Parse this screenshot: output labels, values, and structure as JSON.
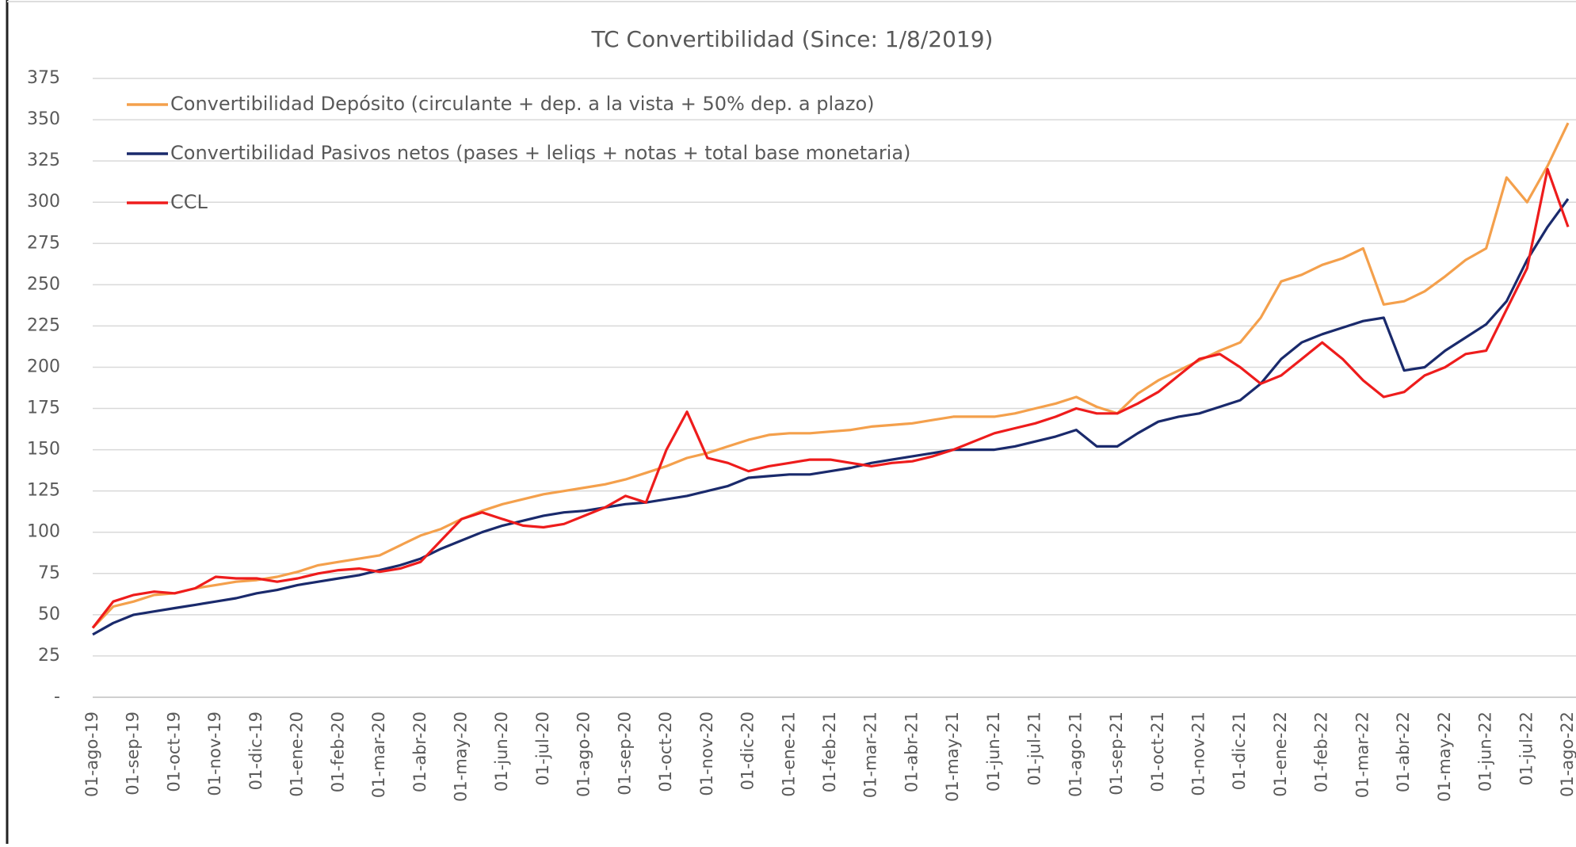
{
  "chart_data": {
    "type": "line",
    "title": "TC Convertibilidad (Since: 1/8/2019)",
    "categories": [
      "01-ago-19",
      null,
      "01-sep-19",
      null,
      "01-oct-19",
      null,
      "01-nov-19",
      null,
      "01-dic-19",
      null,
      "01-ene-20",
      null,
      "01-feb-20",
      null,
      "01-mar-20",
      null,
      "01-abr-20",
      null,
      "01-may-20",
      null,
      "01-jun-20",
      null,
      "01-jul-20",
      null,
      "01-ago-20",
      null,
      "01-sep-20",
      null,
      "01-oct-20",
      null,
      "01-nov-20",
      null,
      "01-dic-20",
      null,
      "01-ene-21",
      null,
      "01-feb-21",
      null,
      "01-mar-21",
      null,
      "01-abr-21",
      null,
      "01-may-21",
      null,
      "01-jun-21",
      null,
      "01-jul-21",
      null,
      "01-ago-21",
      null,
      "01-sep-21",
      null,
      "01-oct-21",
      null,
      "01-nov-21",
      null,
      "01-dic-21",
      null,
      "01-ene-22",
      null,
      "01-feb-22",
      null,
      "01-mar-22",
      null,
      "01-abr-22",
      null,
      "01-may-22",
      null,
      "01-jun-22",
      null,
      "01-jul-22",
      null,
      "01-ago-22"
    ],
    "series": [
      {
        "name": "Convertibilidad Depósito (circulante + dep. a la vista + 50% dep. a plazo)",
        "color": "#f4a04c",
        "values": [
          42,
          55,
          58,
          62,
          63,
          66,
          68,
          70,
          71,
          73,
          76,
          80,
          82,
          84,
          86,
          92,
          98,
          102,
          108,
          113,
          117,
          120,
          123,
          125,
          127,
          129,
          132,
          136,
          140,
          145,
          148,
          152,
          156,
          159,
          160,
          160,
          161,
          162,
          164,
          165,
          166,
          168,
          170,
          170,
          170,
          172,
          175,
          178,
          182,
          176,
          172,
          184,
          192,
          198,
          204,
          210,
          215,
          230,
          252,
          256,
          262,
          266,
          272,
          238,
          240,
          246,
          255,
          265,
          272,
          315,
          300,
          322,
          348
        ]
      },
      {
        "name": "Convertibilidad Pasivos netos (pases + leliqs + notas + total base monetaria)",
        "color": "#1a2a6c",
        "values": [
          38,
          45,
          50,
          52,
          54,
          56,
          58,
          60,
          63,
          65,
          68,
          70,
          72,
          74,
          77,
          80,
          84,
          90,
          95,
          100,
          104,
          107,
          110,
          112,
          113,
          115,
          117,
          118,
          120,
          122,
          125,
          128,
          133,
          134,
          135,
          135,
          137,
          139,
          142,
          144,
          146,
          148,
          150,
          150,
          150,
          152,
          155,
          158,
          162,
          152,
          152,
          160,
          167,
          170,
          172,
          176,
          180,
          190,
          205,
          215,
          220,
          224,
          228,
          230,
          198,
          200,
          210,
          218,
          226,
          240,
          265,
          285,
          302
        ]
      },
      {
        "name": "CCL",
        "color": "#ee1c1c",
        "values": [
          42,
          58,
          62,
          64,
          63,
          66,
          73,
          72,
          72,
          70,
          72,
          75,
          77,
          78,
          76,
          78,
          82,
          95,
          108,
          112,
          108,
          104,
          103,
          105,
          110,
          115,
          122,
          118,
          150,
          173,
          145,
          142,
          137,
          140,
          142,
          144,
          144,
          142,
          140,
          142,
          143,
          146,
          150,
          155,
          160,
          163,
          166,
          170,
          175,
          172,
          172,
          178,
          185,
          195,
          205,
          208,
          200,
          190,
          195,
          205,
          215,
          205,
          192,
          182,
          185,
          195,
          200,
          208,
          210,
          235,
          260,
          320,
          285
        ]
      }
    ],
    "ylim": [
      0,
      375
    ],
    "yticks": [
      {
        "value": 0,
        "label": "-"
      },
      25,
      50,
      75,
      100,
      125,
      150,
      175,
      200,
      225,
      250,
      275,
      300,
      325,
      350,
      375
    ],
    "grid": true,
    "legend": "upper left"
  }
}
